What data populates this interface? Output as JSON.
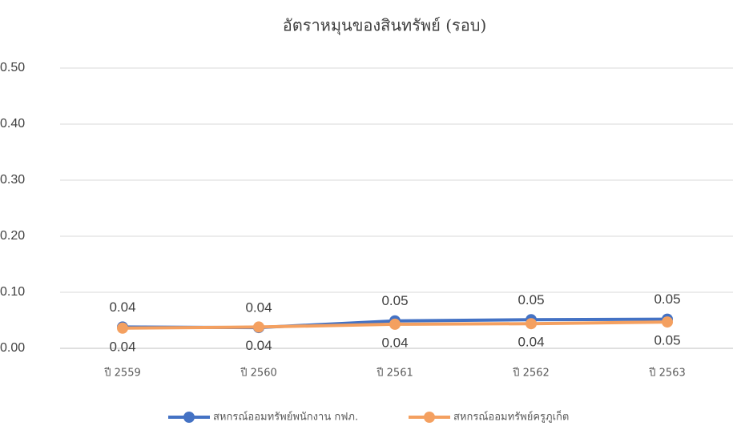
{
  "chart_data": {
    "type": "line",
    "title": "อัตราหมุนของสินทรัพย์ (รอบ)",
    "categories": [
      "ปี 2559",
      "ปี 2560",
      "ปี 2561",
      "ปี 2562",
      "ปี 2563"
    ],
    "series": [
      {
        "name": "สหกรณ์ออมทรัพย์พนักงาน กฟภ.",
        "color": "#4472c4",
        "values": [
          0.038,
          0.037,
          0.049,
          0.051,
          0.052
        ],
        "value_labels": [
          "0.04",
          "0.04",
          "0.05",
          "0.05",
          "0.05"
        ]
      },
      {
        "name": "สหกรณ์ออมทรัพย์ครูภูเก็ต",
        "color": "#f4a060",
        "values": [
          0.036,
          0.038,
          0.043,
          0.044,
          0.047
        ],
        "value_labels": [
          "0.04",
          "0.04",
          "0.04",
          "0.04",
          "0.05"
        ]
      }
    ],
    "ylim": [
      0,
      0.5
    ],
    "yticks": [
      {
        "value": 0,
        "label": "0.00"
      },
      {
        "value": 0.1,
        "label": "0.10"
      },
      {
        "value": 0.2,
        "label": "0.20"
      },
      {
        "value": 0.3,
        "label": "0.30"
      },
      {
        "value": 0.4,
        "label": "0.40"
      },
      {
        "value": 0.5,
        "label": "0.50"
      }
    ],
    "grid": true
  }
}
